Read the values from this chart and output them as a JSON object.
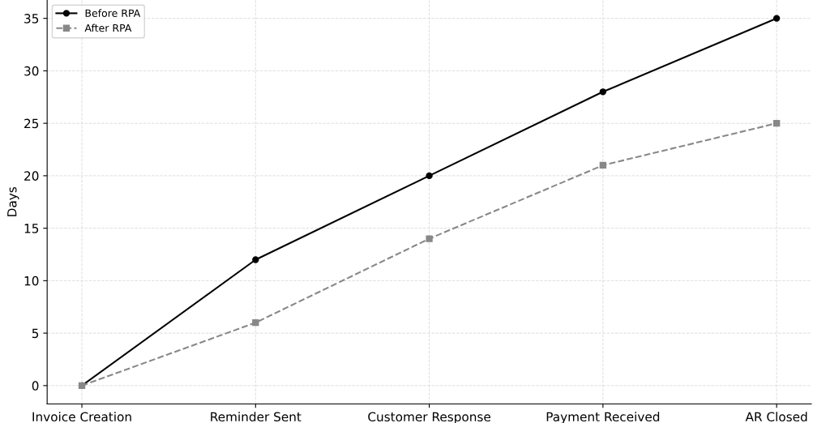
{
  "chart_data": {
    "type": "line",
    "ylabel": "Days",
    "categories": [
      "Invoice Creation",
      "Reminder Sent",
      "Customer Response",
      "Payment Received",
      "AR Closed"
    ],
    "series": [
      {
        "name": "Before RPA",
        "color": "#000000",
        "values": [
          0,
          12,
          20,
          28,
          35
        ],
        "marker": "circle",
        "line_style": "solid"
      },
      {
        "name": "After RPA",
        "color": "#888888",
        "values": [
          0,
          6,
          14,
          21,
          25
        ],
        "marker": "square",
        "line_style": "dashed"
      }
    ],
    "ylim": [
      -1.75,
      36.75
    ],
    "yticks": [
      0,
      5,
      10,
      15,
      20,
      25,
      30,
      35
    ],
    "grid": true,
    "legend": "top left"
  }
}
